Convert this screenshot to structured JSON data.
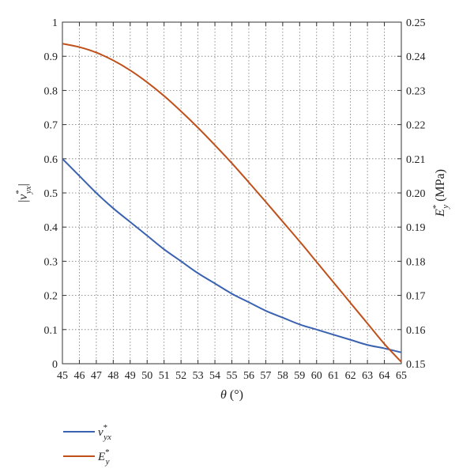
{
  "chart_data": {
    "type": "line",
    "title": "",
    "xlabel": "θ (°)",
    "ylabel_left": "|ν*yx|",
    "ylabel_right": "E*y (MPa)",
    "xlim": [
      45,
      65
    ],
    "ylim_left": [
      0,
      1
    ],
    "ylim_right": [
      0.15,
      0.25
    ],
    "x_ticks": [
      45,
      46,
      47,
      48,
      49,
      50,
      51,
      52,
      53,
      54,
      55,
      56,
      57,
      58,
      59,
      60,
      61,
      62,
      63,
      64,
      65
    ],
    "y_ticks_left": [
      0,
      0.1,
      0.2,
      0.3,
      0.4,
      0.5,
      0.6,
      0.7,
      0.8,
      0.9,
      1
    ],
    "y_tick_labels_left": [
      "0",
      "0.1",
      "0.2",
      "0.3",
      "0.4",
      "0.5",
      "0.6",
      "0.7",
      "0.8",
      "0.9",
      "1"
    ],
    "y_ticks_right": [
      0.15,
      0.16,
      0.17,
      0.18,
      0.19,
      0.2,
      0.21,
      0.22,
      0.23,
      0.24,
      0.25
    ],
    "y_tick_labels_right": [
      "0.15",
      "0.16",
      "0.17",
      "0.18",
      "0.19",
      "0.20",
      "0.21",
      "0.22",
      "0.23",
      "0.24",
      "0.25"
    ],
    "grid": true,
    "legend_position": "bottom-left, below plot",
    "x": [
      45,
      46,
      47,
      48,
      49,
      50,
      51,
      52,
      53,
      54,
      55,
      56,
      57,
      58,
      59,
      60,
      61,
      62,
      63,
      64,
      65
    ],
    "series": [
      {
        "name": "ν*yx",
        "axis": "left",
        "color": "#3a62b0",
        "values": [
          0.6,
          0.55,
          0.5,
          0.455,
          0.415,
          0.375,
          0.335,
          0.3,
          0.265,
          0.235,
          0.205,
          0.18,
          0.155,
          0.135,
          0.115,
          0.1,
          0.085,
          0.07,
          0.055,
          0.045,
          0.033
        ]
      },
      {
        "name": "E*y",
        "axis": "right",
        "color": "#c0501a",
        "values": [
          0.2437,
          0.2427,
          0.2411,
          0.2388,
          0.2359,
          0.2324,
          0.2284,
          0.2239,
          0.2191,
          0.214,
          0.2087,
          0.2031,
          0.1974,
          0.1916,
          0.1858,
          0.1798,
          0.1738,
          0.1678,
          0.1618,
          0.1558,
          0.1505
        ]
      }
    ],
    "legend": [
      {
        "label_main": "ν",
        "label_sup": "*",
        "label_sub": "yx",
        "color": "#3a62b0"
      },
      {
        "label_main": "E",
        "label_sup": "*",
        "label_sub": "y",
        "color": "#c0501a"
      }
    ]
  }
}
